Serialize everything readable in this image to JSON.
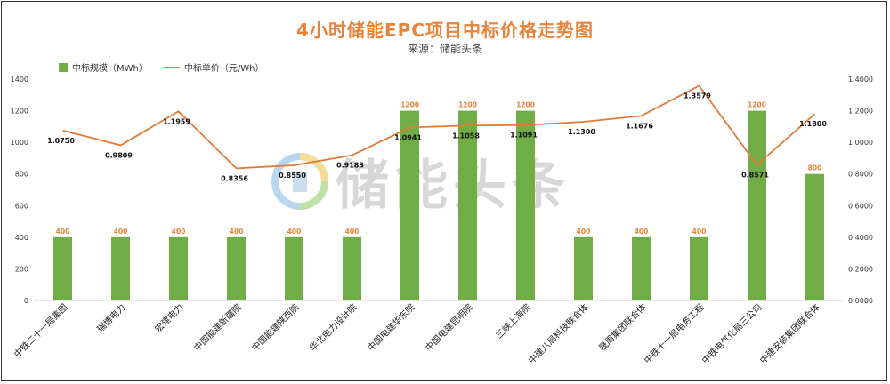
{
  "chart_data": {
    "type": "bar+line",
    "title": "4小时储能EPC项目中标价格走势图",
    "subtitle": "来源：储能头条",
    "categories": [
      "中铁二十一局集团",
      "瑞博电力",
      "宏建电力",
      "中国能建新疆院",
      "中国能建陕西院",
      "华北电力设计院",
      "中国电建华东院",
      "中国电建昆明院",
      "三峡上海院",
      "中建八局科技联合体",
      "晟周集团联合体",
      "中铁十一局电务工程",
      "中铁电气化局三公司",
      "中建安装集团联合体"
    ],
    "series": [
      {
        "name": "中标规模（MWh）",
        "type": "bar",
        "axis": "left",
        "color": "#70ad47",
        "values": [
          400,
          400,
          400,
          400,
          400,
          400,
          1200,
          1200,
          1200,
          400,
          400,
          400,
          1200,
          800
        ]
      },
      {
        "name": "中标单价（元/Wh）",
        "type": "line",
        "axis": "right",
        "color": "#e07b39",
        "values": [
          1.075,
          0.9809,
          1.1959,
          0.8356,
          0.855,
          0.9183,
          1.0941,
          1.1058,
          1.1091,
          1.13,
          1.1676,
          1.3579,
          0.8571,
          1.18
        ]
      }
    ],
    "bar_labels": [
      "400",
      "400",
      "400",
      "400",
      "400",
      "400",
      "1200",
      "1200",
      "1200",
      "400",
      "400",
      "400",
      "1200",
      "800"
    ],
    "line_labels": [
      "1.0750",
      "0.9809",
      "1.1959",
      "0.8356",
      "0.8550",
      "0.9183",
      "1.0941",
      "1.1058",
      "1.1091",
      "1.1300",
      "1.1676",
      "1.3579",
      "0.8571",
      "1.1800"
    ],
    "y_left": {
      "min": 0,
      "max": 1400,
      "ticks": [
        "0",
        "200",
        "400",
        "600",
        "800",
        "1000",
        "1200",
        "1400"
      ]
    },
    "y_right": {
      "min": 0,
      "max": 1.4,
      "ticks": [
        "0.0000",
        "0.2000",
        "0.4000",
        "0.6000",
        "0.8000",
        "1.0000",
        "1.2000",
        "1.4000"
      ]
    },
    "legend_position": "top-left",
    "grid": false
  },
  "watermark": {
    "text": "储能头条"
  }
}
